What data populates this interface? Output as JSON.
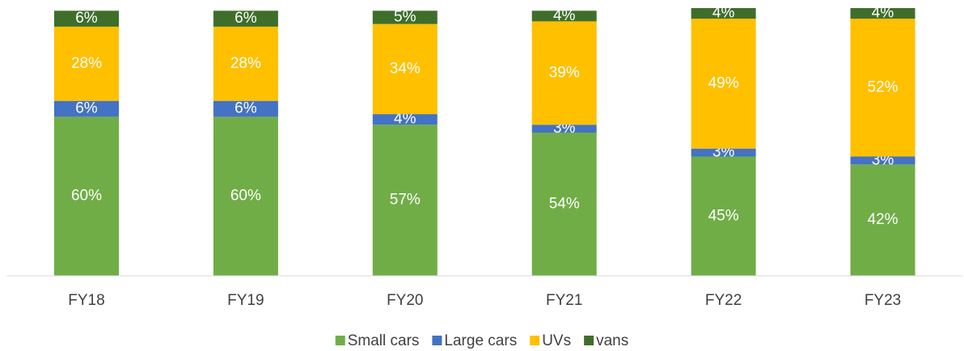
{
  "chart_data": {
    "type": "stacked_bar",
    "categories": [
      "FY18",
      "FY19",
      "FY20",
      "FY21",
      "FY22",
      "FY23"
    ],
    "series": [
      {
        "name": "Small cars",
        "color": "#70ad47",
        "values": [
          60,
          60,
          57,
          54,
          45,
          42
        ],
        "value_labels": [
          "60%",
          "60%",
          "57%",
          "54%",
          "45%",
          "42%"
        ]
      },
      {
        "name": "Large cars",
        "color": "#4472c4",
        "values": [
          6,
          6,
          4,
          3,
          3,
          3
        ],
        "value_labels": [
          "6%",
          "6%",
          "4%",
          "3%",
          "3%",
          "3%"
        ]
      },
      {
        "name": "UVs",
        "color": "#ffc000",
        "values": [
          28,
          28,
          34,
          39,
          49,
          52
        ],
        "value_labels": [
          "28%",
          "28%",
          "34%",
          "39%",
          "49%",
          "52%"
        ]
      },
      {
        "name": "vans",
        "color": "#3f6e2b",
        "values": [
          6,
          6,
          5,
          4,
          4,
          4
        ],
        "value_labels": [
          "6%",
          "6%",
          "5%",
          "4%",
          "4%",
          "4%"
        ]
      }
    ],
    "legend": "bottom"
  }
}
